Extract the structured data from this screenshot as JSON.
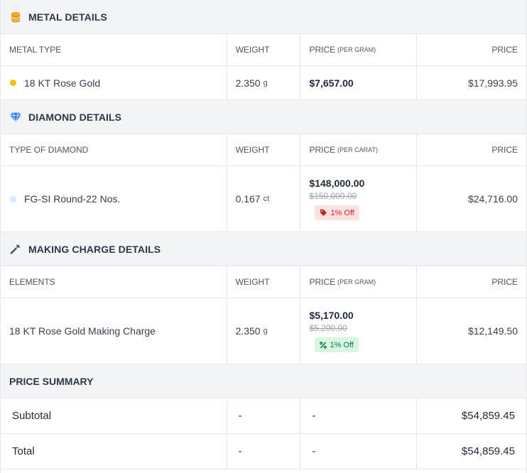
{
  "metal": {
    "title": "METAL DETAILS",
    "icon": "coins-icon",
    "headers": {
      "type": "METAL TYPE",
      "weight": "WEIGHT",
      "price_per": "PRICE",
      "price_per_unit": "(PER GRAM)",
      "price": "PRICE"
    },
    "row": {
      "name": "18 KT Rose Gold",
      "dot_color": "#f2c200",
      "weight": "2.350",
      "weight_unit": "g",
      "rate": "$7,657.00",
      "price": "$17,993.95"
    }
  },
  "diamond": {
    "title": "DIAMOND DETAILS",
    "icon": "diamond-icon",
    "headers": {
      "type": "TYPE OF DIAMOND",
      "weight": "WEIGHT",
      "price_per": "PRICE",
      "price_per_unit": "(PER CARAT)",
      "price": "PRICE"
    },
    "row": {
      "name": "FG-SI Round-22 Nos.",
      "dot_color": "#dbeafe",
      "weight": "0.167",
      "weight_unit": "ct",
      "rate": "$148,000.00",
      "original_rate": "$150,000.00",
      "discount": "1% Off",
      "price": "$24,716.00"
    }
  },
  "making": {
    "title": "MAKING CHARGE DETAILS",
    "icon": "hammer-icon",
    "headers": {
      "type": "ELEMENTS",
      "weight": "WEIGHT",
      "price_per": "PRICE",
      "price_per_unit": "(PER GRAM)",
      "price": "PRICE"
    },
    "row": {
      "name": "18 KT Rose Gold Making Charge",
      "weight": "2.350",
      "weight_unit": "g",
      "rate": "$5,170.00",
      "original_rate": "$5,200.00",
      "discount": "1% Off",
      "price": "$12,149.50"
    }
  },
  "summary": {
    "title": "PRICE SUMMARY",
    "rows": [
      {
        "label": "Subtotal",
        "c2": "-",
        "c3": "-",
        "value": "$54,859.45"
      },
      {
        "label": "Total",
        "c2": "-",
        "c3": "-",
        "value": "$54,859.45"
      }
    ]
  },
  "colors": {
    "header_bg": "#f3f4f6",
    "border": "#e4e7eb",
    "red_badge": "#fde2e2",
    "green_badge": "#d7f7e3",
    "coin": "#f5a623",
    "diamond": "#3b82f6"
  }
}
